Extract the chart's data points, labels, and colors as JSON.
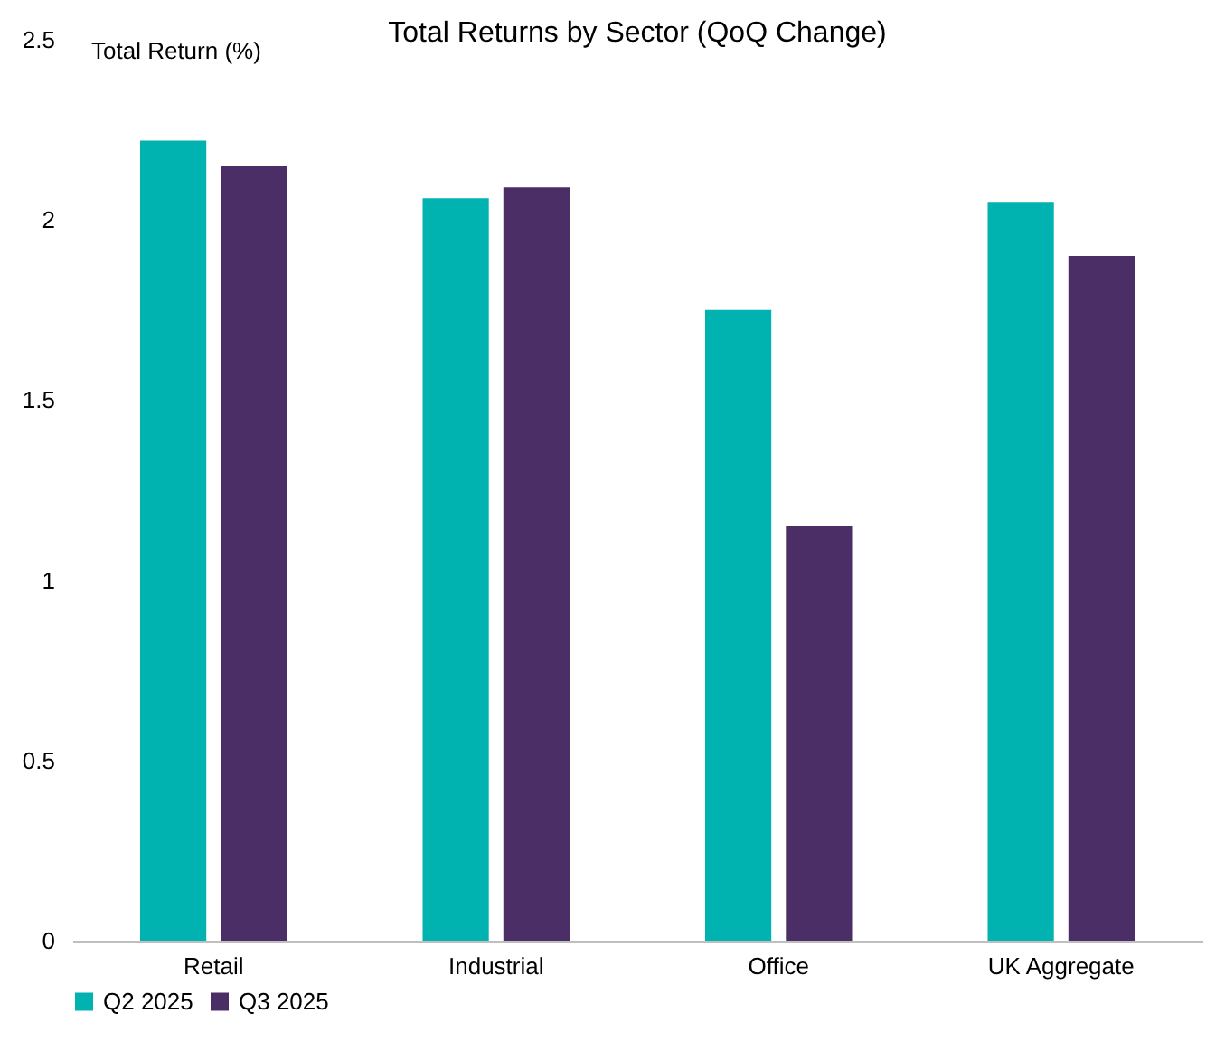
{
  "chart_data": {
    "type": "bar",
    "title": "Total Returns by Sector (QoQ Change)",
    "ylabel": "Total Return (%)",
    "categories": [
      "Retail",
      "Industrial",
      "Office",
      "UK Aggregate"
    ],
    "series": [
      {
        "name": "Q2 2025",
        "color": "#00b2b0",
        "values": [
          2.22,
          2.06,
          1.75,
          2.05
        ]
      },
      {
        "name": "Q3 2025",
        "color": "#4b2e66",
        "values": [
          2.15,
          2.09,
          1.15,
          1.9
        ]
      }
    ],
    "ylim": [
      0,
      2.5
    ],
    "yticks": [
      0,
      0.5,
      1,
      1.5,
      2,
      2.5
    ],
    "grid": false,
    "legend": "bottom"
  }
}
